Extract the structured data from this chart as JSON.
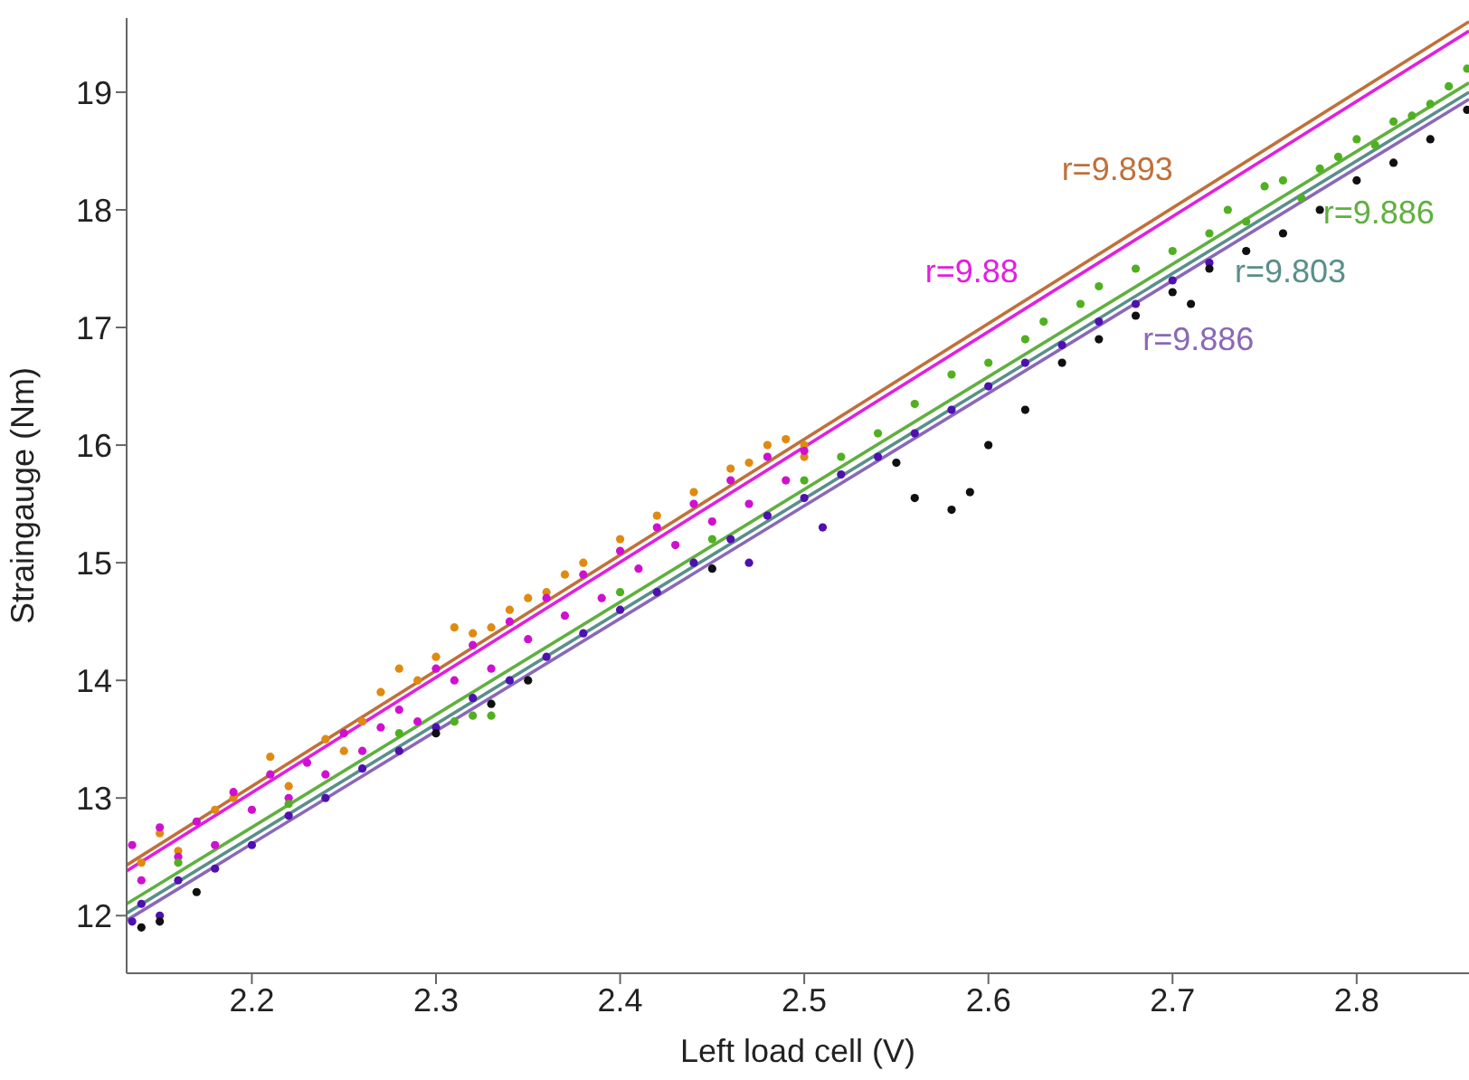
{
  "chart_data": {
    "type": "scatter",
    "xlabel": "Left load cell (V)",
    "ylabel": "Straingauge (Nm)",
    "xlim": [
      2.132,
      2.861
    ],
    "xticks": [
      2.2,
      2.3,
      2.4,
      2.5,
      2.6,
      2.7,
      2.8
    ],
    "ylim": [
      11.51,
      19.63
    ],
    "yticks": [
      12,
      13,
      14,
      15,
      16,
      17,
      18,
      19
    ],
    "grid": false,
    "legend": false,
    "marker": "circle",
    "series": [
      {
        "color": "#e08a10",
        "x": [
          2.14,
          2.15,
          2.16,
          2.18,
          2.19,
          2.21,
          2.22,
          2.24,
          2.25,
          2.26,
          2.27,
          2.28,
          2.29,
          2.3,
          2.31,
          2.32,
          2.33,
          2.34,
          2.35,
          2.36,
          2.37,
          2.38,
          2.4,
          2.42,
          2.44,
          2.46,
          2.47,
          2.48,
          2.49,
          2.5,
          2.5
        ],
        "values": [
          12.45,
          12.7,
          12.55,
          12.9,
          13.0,
          13.35,
          13.1,
          13.5,
          13.4,
          13.65,
          13.9,
          14.1,
          14.0,
          14.2,
          14.45,
          14.4,
          14.45,
          14.6,
          14.7,
          14.75,
          14.9,
          15.0,
          15.2,
          15.4,
          15.6,
          15.8,
          15.85,
          16.0,
          16.05,
          16.0,
          15.9
        ]
      },
      {
        "color": "#d010d0",
        "x": [
          2.135,
          2.14,
          2.15,
          2.16,
          2.17,
          2.18,
          2.19,
          2.2,
          2.21,
          2.22,
          2.23,
          2.24,
          2.25,
          2.26,
          2.27,
          2.28,
          2.29,
          2.3,
          2.31,
          2.32,
          2.33,
          2.34,
          2.35,
          2.36,
          2.37,
          2.38,
          2.39,
          2.4,
          2.41,
          2.42,
          2.43,
          2.44,
          2.45,
          2.46,
          2.47,
          2.48,
          2.49,
          2.5
        ],
        "values": [
          12.6,
          12.3,
          12.75,
          12.5,
          12.8,
          12.6,
          13.05,
          12.9,
          13.2,
          13.0,
          13.3,
          13.2,
          13.55,
          13.4,
          13.6,
          13.75,
          13.65,
          14.1,
          14.0,
          14.3,
          14.1,
          14.5,
          14.35,
          14.7,
          14.55,
          14.9,
          14.7,
          15.1,
          14.95,
          15.3,
          15.15,
          15.5,
          15.35,
          15.7,
          15.5,
          15.9,
          15.7,
          15.95
        ]
      },
      {
        "color": "#50b020",
        "x": [
          2.16,
          2.22,
          2.28,
          2.31,
          2.32,
          2.33,
          2.4,
          2.45,
          2.5,
          2.52,
          2.54,
          2.56,
          2.58,
          2.6,
          2.62,
          2.63,
          2.65,
          2.66,
          2.68,
          2.7,
          2.72,
          2.73,
          2.74,
          2.75,
          2.76,
          2.77,
          2.78,
          2.79,
          2.8,
          2.81,
          2.82,
          2.83,
          2.84,
          2.85,
          2.86
        ],
        "values": [
          12.45,
          12.95,
          13.55,
          13.65,
          13.7,
          13.7,
          14.75,
          15.2,
          15.7,
          15.9,
          16.1,
          16.35,
          16.6,
          16.7,
          16.9,
          17.05,
          17.2,
          17.35,
          17.5,
          17.65,
          17.8,
          18.0,
          17.9,
          18.2,
          18.25,
          18.1,
          18.35,
          18.45,
          18.6,
          18.55,
          18.75,
          18.8,
          18.9,
          19.05,
          19.2
        ]
      },
      {
        "color": "#5010b0",
        "x": [
          2.135,
          2.14,
          2.15,
          2.16,
          2.18,
          2.2,
          2.22,
          2.24,
          2.26,
          2.28,
          2.3,
          2.32,
          2.34,
          2.36,
          2.38,
          2.4,
          2.42,
          2.44,
          2.46,
          2.47,
          2.48,
          2.5,
          2.51,
          2.52,
          2.54,
          2.56,
          2.58,
          2.6,
          2.62,
          2.64,
          2.66,
          2.68,
          2.7,
          2.72
        ],
        "values": [
          11.95,
          12.1,
          12.0,
          12.3,
          12.4,
          12.6,
          12.85,
          13.0,
          13.25,
          13.4,
          13.6,
          13.85,
          14.0,
          14.2,
          14.4,
          14.6,
          14.75,
          15.0,
          15.2,
          15.0,
          15.4,
          15.55,
          15.3,
          15.75,
          15.9,
          16.1,
          16.3,
          16.5,
          16.7,
          16.85,
          17.05,
          17.2,
          17.4,
          17.55
        ]
      },
      {
        "color": "#101010",
        "x": [
          2.14,
          2.15,
          2.17,
          2.3,
          2.33,
          2.35,
          2.45,
          2.55,
          2.56,
          2.58,
          2.59,
          2.6,
          2.62,
          2.64,
          2.66,
          2.68,
          2.7,
          2.71,
          2.72,
          2.74,
          2.76,
          2.78,
          2.8,
          2.82,
          2.84,
          2.86
        ],
        "values": [
          11.9,
          11.95,
          12.2,
          13.55,
          13.8,
          14.0,
          14.95,
          15.85,
          15.55,
          15.45,
          15.6,
          16.0,
          16.3,
          16.7,
          16.9,
          17.1,
          17.3,
          17.2,
          17.5,
          17.65,
          17.8,
          18.0,
          18.25,
          18.4,
          18.6,
          18.85
        ]
      },
      {
        "type": "line",
        "marker": "none",
        "name": "r=9.893",
        "color": "#c0703a",
        "x": [
          2.132,
          2.861
        ],
        "values": [
          12.43,
          19.6
        ]
      },
      {
        "type": "line",
        "marker": "none",
        "name": "r=9.88",
        "color": "#e020e0",
        "x": [
          2.132,
          2.861
        ],
        "values": [
          12.38,
          19.52
        ]
      },
      {
        "type": "line",
        "marker": "none",
        "name": "r=9.886",
        "color": "#60b040",
        "x": [
          2.132,
          2.861
        ],
        "values": [
          12.1,
          19.08
        ]
      },
      {
        "type": "line",
        "marker": "none",
        "name": "r=9.803",
        "color": "#5a8f8a",
        "x": [
          2.132,
          2.861
        ],
        "values": [
          12.02,
          19.0
        ]
      },
      {
        "type": "line",
        "marker": "none",
        "name": "r=9.886",
        "color": "#8a68b8",
        "x": [
          2.132,
          2.861
        ],
        "values": [
          11.96,
          18.94
        ]
      }
    ]
  }
}
